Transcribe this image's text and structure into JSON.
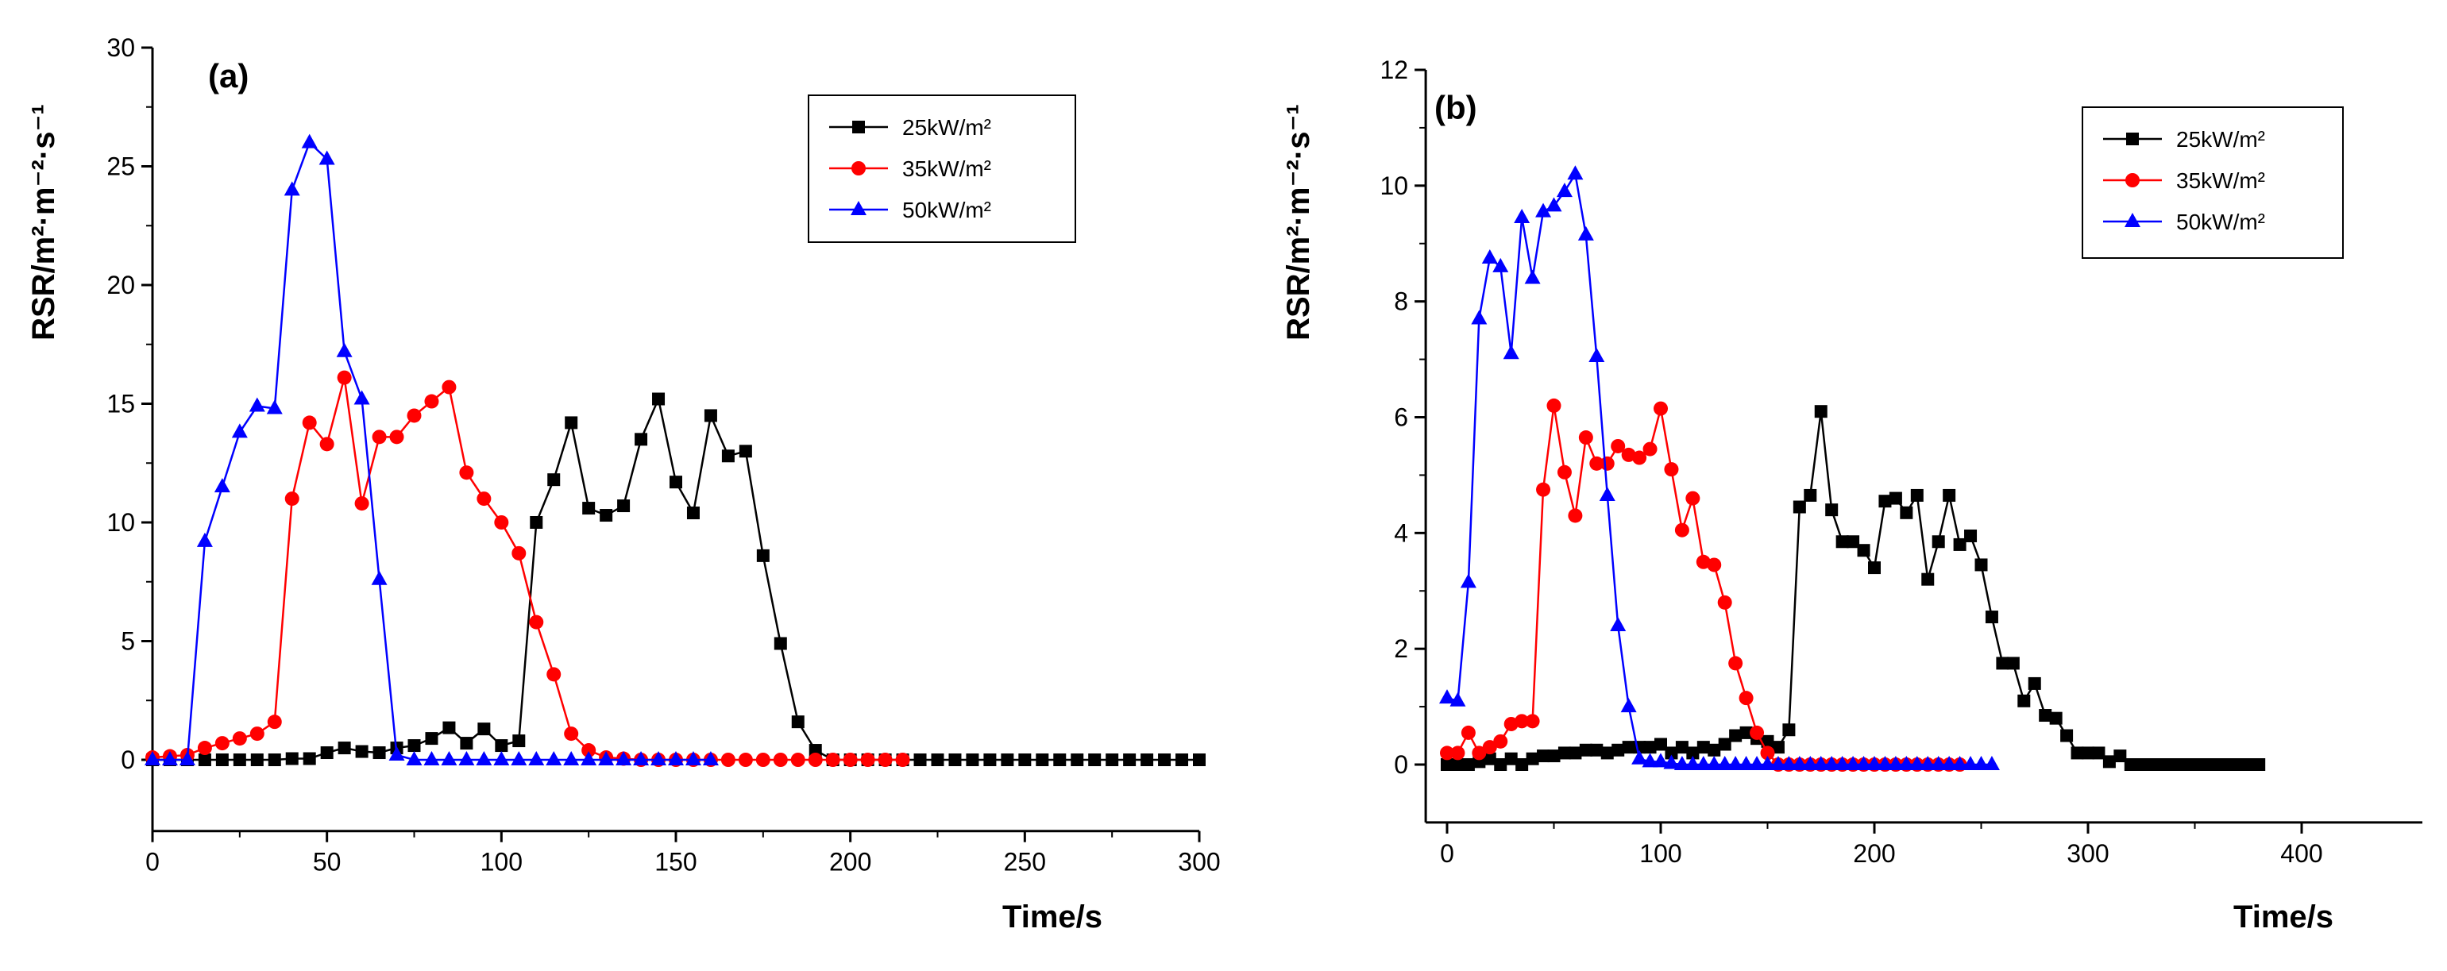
{
  "chart_data": [
    {
      "type": "line",
      "panel_label": "(a)",
      "xlabel": "Time/s",
      "ylabel": "RSR/m²·m⁻²·s⁻¹",
      "xlim": [
        0,
        300
      ],
      "ylim": [
        -3,
        30
      ],
      "xticks": [
        "0",
        "50",
        "100",
        "150",
        "200",
        "250",
        "300"
      ],
      "yticks": [
        "0",
        "5",
        "10",
        "15",
        "20",
        "25",
        "30"
      ],
      "legend_position": "top-right",
      "series": [
        {
          "name": "25kW/m²",
          "color": "#000000",
          "marker": "square",
          "x": [
            0,
            5,
            10,
            15,
            20,
            25,
            30,
            35,
            40,
            45,
            50,
            55,
            60,
            65,
            70,
            75,
            80,
            85,
            90,
            95,
            100,
            105,
            110,
            115,
            120,
            125,
            130,
            135,
            140,
            145,
            150,
            155,
            160,
            165,
            170,
            175,
            180,
            185,
            190,
            195,
            200,
            205,
            210,
            215,
            220,
            225,
            230,
            235,
            240,
            245,
            250,
            255,
            260,
            265,
            270,
            275,
            280,
            285,
            290,
            295,
            300
          ],
          "y": [
            0,
            0,
            0,
            0,
            0,
            0,
            0,
            0,
            0.05,
            0.05,
            0.3,
            0.5,
            0.35,
            0.3,
            0.5,
            0.6,
            0.9,
            1.35,
            0.7,
            1.3,
            0.6,
            0.8,
            10,
            11.8,
            14.2,
            10.6,
            10.3,
            10.7,
            13.5,
            15.2,
            11.7,
            10.4,
            14.5,
            12.8,
            13,
            8.6,
            4.9,
            1.6,
            0.4,
            0,
            0,
            0,
            0,
            0,
            0,
            0,
            0,
            0,
            0,
            0,
            0,
            0,
            0,
            0,
            0,
            0,
            0,
            0,
            0,
            0,
            0
          ]
        },
        {
          "name": "35kW/m²",
          "color": "#ff0000",
          "marker": "circle",
          "x": [
            0,
            5,
            10,
            15,
            20,
            25,
            30,
            35,
            40,
            45,
            50,
            55,
            60,
            65,
            70,
            75,
            80,
            85,
            90,
            95,
            100,
            105,
            110,
            115,
            120,
            125,
            130,
            135,
            140,
            145,
            150,
            155,
            160,
            165,
            170,
            175,
            180,
            185,
            190,
            195,
            200,
            205,
            210,
            215
          ],
          "y": [
            0.1,
            0.15,
            0.2,
            0.5,
            0.7,
            0.9,
            1.1,
            1.6,
            11,
            14.2,
            13.3,
            16.1,
            10.8,
            13.6,
            13.6,
            14.5,
            15.1,
            15.7,
            12.1,
            11,
            10,
            8.7,
            5.8,
            3.6,
            1.1,
            0.4,
            0.1,
            0.05,
            0,
            0,
            0,
            0,
            0,
            0,
            0,
            0,
            0,
            0,
            0,
            0,
            0,
            0,
            0,
            0
          ]
        },
        {
          "name": "50kW/m²",
          "color": "#0000ff",
          "marker": "triangle",
          "x": [
            0,
            5,
            10,
            15,
            20,
            25,
            30,
            35,
            40,
            45,
            50,
            55,
            60,
            65,
            70,
            75,
            80,
            85,
            90,
            95,
            100,
            105,
            110,
            115,
            120,
            125,
            130,
            135,
            140,
            145,
            150,
            155,
            160
          ],
          "y": [
            0,
            0,
            0,
            9.2,
            11.5,
            13.8,
            14.9,
            14.8,
            24,
            26,
            25.3,
            17.2,
            15.2,
            7.6,
            0.2,
            0,
            0,
            0,
            0,
            0,
            0,
            0,
            0,
            0,
            0,
            0,
            0,
            0,
            0,
            0,
            0,
            0,
            0
          ]
        }
      ]
    },
    {
      "type": "line",
      "panel_label": "(b)",
      "xlabel": "Time/s",
      "ylabel": "RSR/m²·m⁻²·s⁻¹",
      "xlim": [
        -10,
        450
      ],
      "ylim": [
        -1,
        12
      ],
      "xticks": [
        "0",
        "100",
        "200",
        "300",
        "400"
      ],
      "yticks": [
        "0",
        "2",
        "4",
        "6",
        "8",
        "10",
        "12"
      ],
      "legend_position": "top-right",
      "series": [
        {
          "name": "25kW/m²",
          "color": "#000000",
          "marker": "square",
          "x": [
            0,
            5,
            10,
            15,
            20,
            25,
            30,
            35,
            40,
            45,
            50,
            55,
            60,
            65,
            70,
            75,
            80,
            85,
            90,
            95,
            100,
            105,
            110,
            115,
            120,
            125,
            130,
            135,
            140,
            145,
            150,
            155,
            160,
            165,
            170,
            175,
            180,
            185,
            190,
            195,
            200,
            205,
            210,
            215,
            220,
            225,
            230,
            235,
            240,
            245,
            250,
            255,
            260,
            265,
            270,
            275,
            280,
            285,
            290,
            295,
            300,
            305,
            310,
            315,
            320,
            325,
            330,
            335,
            340,
            345,
            350,
            355,
            360,
            365,
            370,
            375,
            380
          ],
          "y": [
            0,
            0,
            0,
            0.05,
            0.1,
            0,
            0.1,
            0,
            0.1,
            0.15,
            0.15,
            0.2,
            0.2,
            0.25,
            0.25,
            0.2,
            0.25,
            0.3,
            0.3,
            0.3,
            0.35,
            0.2,
            0.3,
            0.2,
            0.3,
            0.25,
            0.35,
            0.5,
            0.55,
            0.45,
            0.4,
            0.3,
            0.6,
            4.45,
            4.65,
            6.1,
            4.4,
            3.85,
            3.85,
            3.7,
            3.4,
            4.55,
            4.6,
            4.35,
            4.65,
            3.2,
            3.85,
            4.65,
            3.8,
            3.95,
            3.45,
            2.55,
            1.75,
            1.75,
            1.1,
            1.4,
            0.85,
            0.8,
            0.5,
            0.2,
            0.2,
            0.2,
            0.05,
            0.15,
            0,
            0,
            0,
            0,
            0,
            0,
            0,
            0,
            0,
            0,
            0,
            0,
            0
          ]
        },
        {
          "name": "35kW/m²",
          "color": "#ff0000",
          "marker": "circle",
          "x": [
            0,
            5,
            10,
            15,
            20,
            25,
            30,
            35,
            40,
            45,
            50,
            55,
            60,
            65,
            70,
            75,
            80,
            85,
            90,
            95,
            100,
            105,
            110,
            115,
            120,
            125,
            130,
            135,
            140,
            145,
            150,
            155,
            160,
            165,
            170,
            175,
            180,
            185,
            190,
            195,
            200,
            205,
            210,
            215,
            220,
            225,
            230,
            235,
            240
          ],
          "y": [
            0.2,
            0.2,
            0.55,
            0.2,
            0.3,
            0.4,
            0.7,
            0.75,
            0.75,
            4.75,
            6.2,
            5.05,
            4.3,
            5.65,
            5.2,
            5.2,
            5.5,
            5.35,
            5.3,
            5.45,
            6.15,
            5.1,
            4.05,
            4.6,
            3.5,
            3.45,
            2.8,
            1.75,
            1.15,
            0.55,
            0.2,
            0,
            0,
            0,
            0,
            0,
            0,
            0,
            0,
            0,
            0,
            0,
            0,
            0,
            0,
            0,
            0,
            0,
            0
          ]
        },
        {
          "name": "50kW/m²",
          "color": "#0000ff",
          "marker": "triangle",
          "x": [
            0,
            5,
            10,
            15,
            20,
            25,
            30,
            35,
            40,
            45,
            50,
            55,
            60,
            65,
            70,
            75,
            80,
            85,
            90,
            95,
            100,
            105,
            110,
            115,
            120,
            125,
            130,
            135,
            140,
            145,
            150,
            155,
            160,
            165,
            170,
            175,
            180,
            185,
            190,
            195,
            200,
            205,
            210,
            215,
            220,
            225,
            230,
            235,
            240,
            245,
            250,
            255
          ],
          "y": [
            1.15,
            1.1,
            3.15,
            7.7,
            8.75,
            8.6,
            7.1,
            9.45,
            8.4,
            9.55,
            9.65,
            9.9,
            10.2,
            9.15,
            7.05,
            4.65,
            2.4,
            1.0,
            0.1,
            0.05,
            0.05,
            0.02,
            0,
            0,
            0,
            0,
            0,
            0,
            0,
            0,
            0,
            0,
            0,
            0,
            0,
            0,
            0,
            0,
            0,
            0,
            0,
            0,
            0,
            0,
            0,
            0,
            0,
            0,
            0,
            0,
            0,
            0
          ]
        }
      ]
    }
  ]
}
